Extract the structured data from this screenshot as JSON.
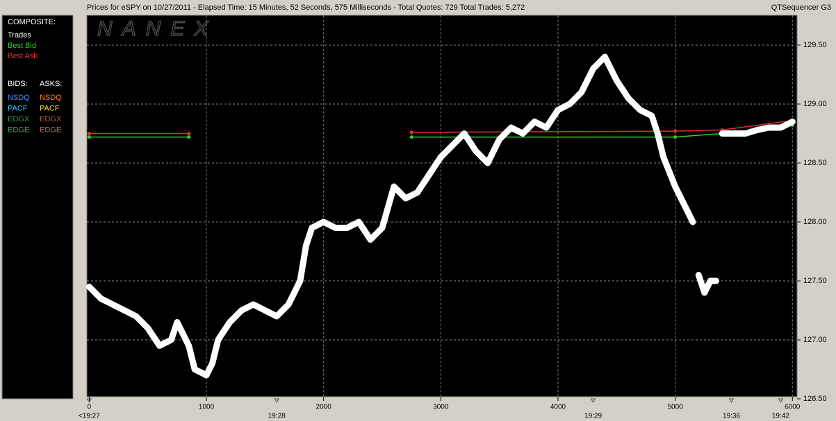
{
  "chart_data": {
    "type": "line",
    "title": "Prices for  eSPY  on  10/27/2011  -  Elapsed Time: 15 Minutes, 52 Seconds, 575 Milliseconds  -  Total Quotes: 729  Total Trades: 5,272",
    "app_name": "QTSequencer G3",
    "watermark": "NANEX",
    "legend_title": "COMPOSITE:",
    "series": [
      {
        "name": "Trades",
        "color": "#ffffff",
        "x": [
          0,
          100,
          200,
          300,
          400,
          500,
          600,
          700,
          750,
          800,
          850,
          900,
          1000,
          1050,
          1100,
          1200,
          1300,
          1400,
          1500,
          1600,
          1700,
          1750,
          1800,
          1850,
          1900,
          2000,
          2100,
          2200,
          2300,
          2400,
          2500,
          2600,
          2700,
          2800,
          2900,
          3000,
          3100,
          3200,
          3300,
          3400,
          3500,
          3600,
          3700,
          3800,
          3900,
          4000,
          4100,
          4200,
          4300,
          4400,
          4500,
          4600,
          4700,
          4800,
          4850,
          4900,
          5000,
          5100,
          5150,
          5180,
          5200,
          5250,
          5300,
          5350,
          5380,
          5400,
          5500,
          5600,
          5700,
          5800,
          5900,
          6000
        ],
        "values": [
          127.45,
          127.35,
          127.3,
          127.25,
          127.2,
          127.1,
          126.95,
          127.0,
          127.15,
          127.05,
          126.95,
          126.75,
          126.7,
          126.8,
          127.0,
          127.15,
          127.25,
          127.3,
          127.25,
          127.2,
          127.3,
          127.4,
          127.5,
          127.8,
          127.95,
          128.0,
          127.95,
          127.95,
          128.0,
          127.85,
          127.95,
          128.3,
          128.2,
          128.25,
          128.4,
          128.55,
          128.65,
          128.75,
          128.6,
          128.5,
          128.7,
          128.8,
          128.75,
          128.85,
          128.8,
          128.95,
          129.0,
          129.1,
          129.3,
          129.4,
          129.2,
          129.05,
          128.95,
          128.9,
          128.75,
          128.55,
          128.3,
          128.1,
          128.0,
          null,
          127.55,
          127.4,
          127.5,
          127.5,
          null,
          128.75,
          128.75,
          128.75,
          128.78,
          128.8,
          128.8,
          128.85
        ]
      },
      {
        "name": "Best Bid",
        "color": "#33cc33",
        "x": [
          0,
          850,
          1800,
          2750,
          5000,
          5400,
          6000
        ],
        "values": [
          128.72,
          128.72,
          null,
          128.72,
          128.72,
          128.75,
          128.82
        ]
      },
      {
        "name": "Best Ask",
        "color": "#e03030",
        "x": [
          0,
          850,
          1800,
          2750,
          5000,
          5400,
          6000
        ],
        "values": [
          128.75,
          128.75,
          null,
          128.76,
          128.77,
          128.78,
          128.86
        ]
      }
    ],
    "exchange_legend": {
      "bids_title": "BIDS:",
      "asks_title": "ASKS:",
      "bids": [
        {
          "name": "NSDQ",
          "color": "#4a8cff"
        },
        {
          "name": "PACF",
          "color": "#30d0ff"
        },
        {
          "name": "EDGX",
          "color": "#2e9a4a"
        },
        {
          "name": "EDGE",
          "color": "#3aa060"
        }
      ],
      "asks": [
        {
          "name": "NSDQ",
          "color": "#ff8030"
        },
        {
          "name": "PACF",
          "color": "#ffe040"
        },
        {
          "name": "EDGX",
          "color": "#c05a3a"
        },
        {
          "name": "EDGE",
          "color": "#c06a4a"
        }
      ]
    },
    "xlim": [
      -20,
      6040
    ],
    "xticks": [
      0,
      1000,
      2000,
      3000,
      4000,
      5000,
      6000
    ],
    "time_labels": [
      {
        "value": 0,
        "label": "<19:27"
      },
      {
        "value": 1600,
        "label": "19:28"
      },
      {
        "value": 4300,
        "label": "19:29"
      },
      {
        "value": 5480,
        "label": "19:36"
      },
      {
        "value": 5900,
        "label": "19:42"
      }
    ],
    "ylim": [
      126.5,
      129.75
    ],
    "yticks": [
      {
        "value": 126.5,
        "label": "126.50"
      },
      {
        "value": 127,
        "label": "127.00"
      },
      {
        "value": 127.5,
        "label": "127.50"
      },
      {
        "value": 128,
        "label": "128.00"
      },
      {
        "value": 128.5,
        "label": "128.50"
      },
      {
        "value": 129,
        "label": "129.00"
      },
      {
        "value": 129.5,
        "label": "129.50"
      }
    ],
    "grid": true
  }
}
